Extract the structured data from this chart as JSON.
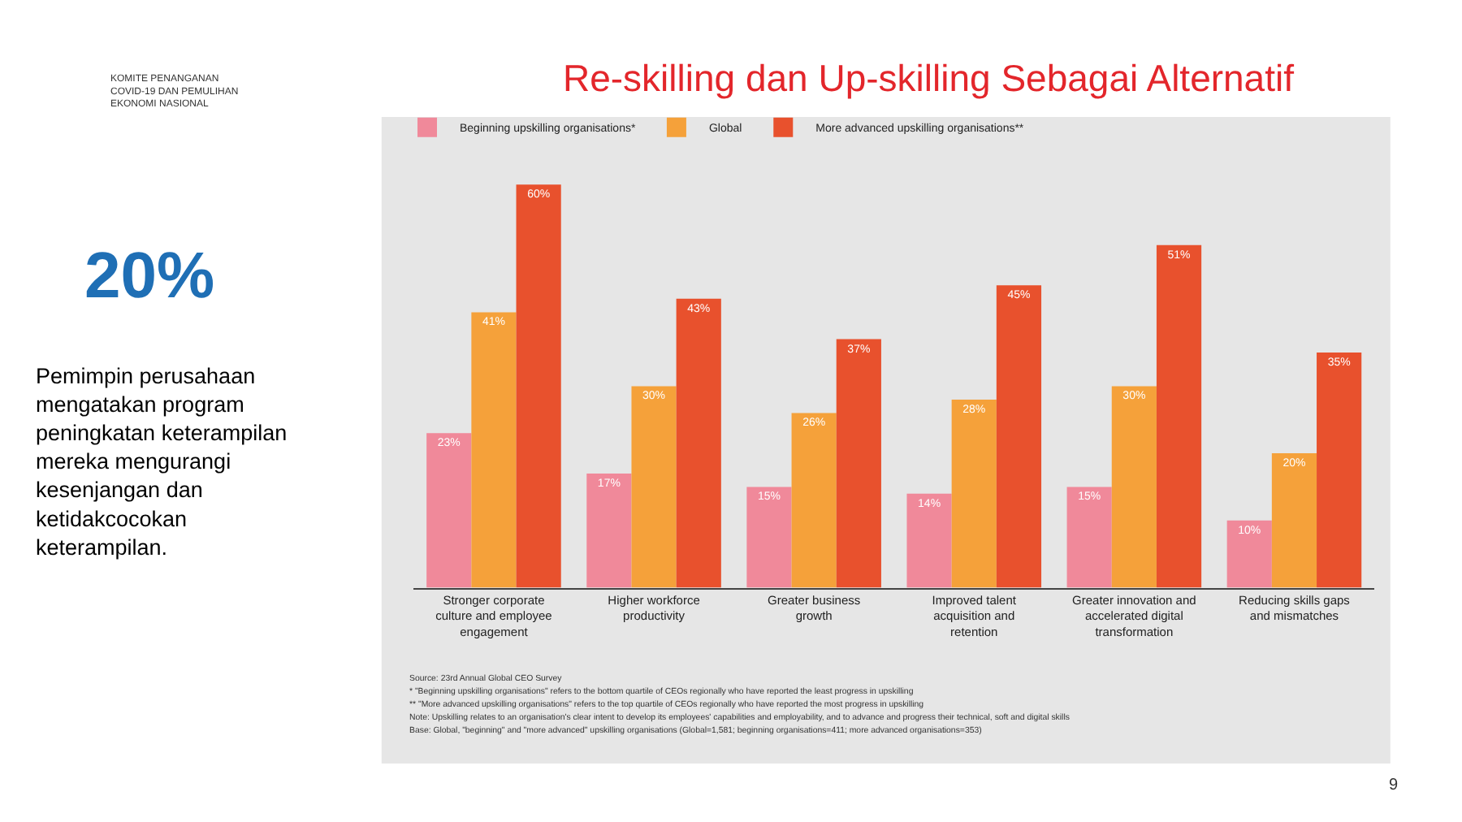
{
  "chart_data": {
    "type": "bar",
    "title": "Re-skilling dan Up-skilling Sebagai Alternatif",
    "categories": [
      "Stronger corporate culture and employee engagement",
      "Higher workforce productivity",
      "Greater business growth",
      "Improved talent acquisition and retention",
      "Greater innovation and accelerated digital transformation",
      "Reducing skills gaps and mismatches"
    ],
    "series": [
      {
        "name": "Beginning upskilling organisations*",
        "color": "#f0899a",
        "values": [
          23,
          17,
          15,
          14,
          15,
          10
        ],
        "value_labels": [
          "23%",
          "17%",
          "15%",
          "14%",
          "15%",
          "10%"
        ]
      },
      {
        "name": "Global",
        "color": "#f5a13a",
        "values": [
          41,
          30,
          26,
          28,
          30,
          20
        ],
        "value_labels": [
          "41%",
          "30%",
          "26%",
          "28%",
          "30%",
          "20%"
        ]
      },
      {
        "name": "More advanced upskilling organisations**",
        "color": "#e8512d",
        "values": [
          60,
          43,
          37,
          45,
          51,
          35
        ],
        "value_labels": [
          "60%",
          "43%",
          "37%",
          "45%",
          "51%",
          "35%"
        ]
      }
    ],
    "legend": "top left",
    "grid": false,
    "annotations": [
      "KOMITE PENANGANAN\nCOVID-19 DAN PEMULIHAN\nEKONOMI NASIONAL",
      "20%",
      "Pemimpin perusahaan\nmengatakan program\npeningkatan keterampilan\nmereka mengurangi\nkesenjangan dan\nketidakcocokan\nketerampilan.",
      "Source: 23rd Annual Global CEO Survey",
      "* \"Beginning upskilling organisations\" refers to the bottom quartile of CEOs regionally who have reported the least progress in upskilling",
      "** \"More advanced upskilling organisations\" refers to the top quartile of CEOs regionally who have reported the most progress in upskilling",
      "Note: Upskilling relates to an organisation's clear intent to develop its employees' capabilities and employability, and to advance and progress their technical, soft and digital skills",
      "Base: Global, \"beginning\" and \"more advanced\" upskilling organisations (Global=1,581; beginning organisations=411; more advanced organisations=353)",
      "9"
    ]
  }
}
